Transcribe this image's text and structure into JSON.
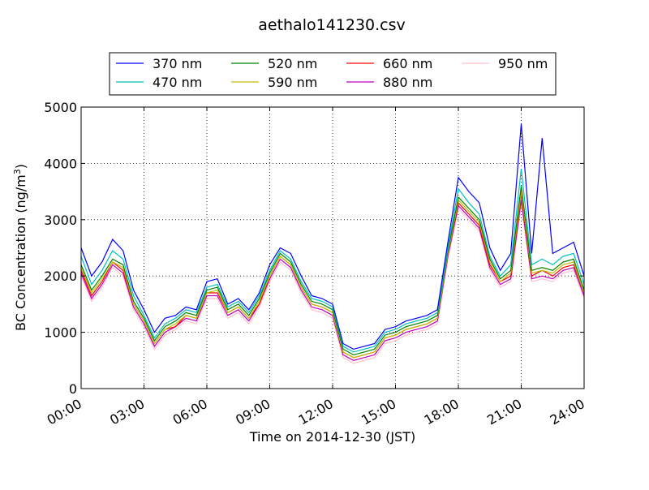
{
  "chart_data": {
    "type": "line",
    "title": "aethalo141230.csv",
    "xlabel": "Time on 2014-12-30 (JST)",
    "ylabel": "BC Concentration (ng/m",
    "ylabel_sup": "3",
    "ylabel_close": ")",
    "xlim": [
      0,
      24
    ],
    "ylim": [
      0,
      5000
    ],
    "grid": true,
    "legend_position": "top-center",
    "x_ticks": [
      0,
      3,
      6,
      9,
      12,
      15,
      18,
      21,
      24
    ],
    "x_tick_labels": [
      "00:00",
      "03:00",
      "06:00",
      "09:00",
      "12:00",
      "15:00",
      "18:00",
      "21:00",
      "24:00"
    ],
    "y_ticks": [
      0,
      1000,
      2000,
      3000,
      4000,
      5000
    ],
    "y_tick_labels": [
      "0",
      "1000",
      "2000",
      "3000",
      "4000",
      "5000"
    ],
    "x": [
      0,
      0.5,
      1,
      1.5,
      2,
      2.5,
      3,
      3.5,
      4,
      4.5,
      5,
      5.5,
      6,
      6.5,
      7,
      7.5,
      8,
      8.5,
      9,
      9.5,
      10,
      10.5,
      11,
      11.5,
      12,
      12.5,
      13,
      13.5,
      14,
      14.5,
      15,
      15.5,
      16,
      16.5,
      17,
      17.5,
      18,
      18.5,
      19,
      19.5,
      20,
      20.5,
      21,
      21.5,
      22,
      22.5,
      23,
      23.5,
      24
    ],
    "series": [
      {
        "name": "370 nm",
        "color": "#0000ff",
        "values": [
          2500,
          2000,
          2250,
          2650,
          2450,
          1750,
          1400,
          1000,
          1250,
          1300,
          1450,
          1400,
          1900,
          1950,
          1500,
          1600,
          1400,
          1700,
          2200,
          2500,
          2400,
          2000,
          1650,
          1600,
          1500,
          800,
          700,
          750,
          800,
          1050,
          1100,
          1200,
          1250,
          1300,
          1400,
          2600,
          3750,
          3500,
          3300,
          2500,
          2100,
          2400,
          4700,
          2400,
          4450,
          2400,
          2500,
          2600,
          2000
        ]
      },
      {
        "name": "470 nm",
        "color": "#00bfbf",
        "values": [
          2350,
          1850,
          2100,
          2450,
          2300,
          1650,
          1300,
          900,
          1150,
          1250,
          1400,
          1350,
          1800,
          1850,
          1450,
          1550,
          1350,
          1650,
          2100,
          2450,
          2300,
          1900,
          1600,
          1550,
          1450,
          750,
          650,
          700,
          750,
          1000,
          1050,
          1150,
          1200,
          1250,
          1350,
          2500,
          3550,
          3300,
          3100,
          2350,
          2000,
          2200,
          3900,
          2200,
          2300,
          2200,
          2350,
          2400,
          1850
        ]
      },
      {
        "name": "520 nm",
        "color": "#008000",
        "values": [
          2200,
          1750,
          2000,
          2300,
          2200,
          1550,
          1250,
          850,
          1100,
          1200,
          1350,
          1300,
          1750,
          1800,
          1400,
          1500,
          1300,
          1600,
          2050,
          2400,
          2250,
          1850,
          1550,
          1500,
          1400,
          700,
          600,
          650,
          700,
          950,
          1000,
          1100,
          1150,
          1200,
          1300,
          2450,
          3400,
          3200,
          3000,
          2300,
          1950,
          2100,
          3600,
          2100,
          2150,
          2100,
          2250,
          2300,
          1750
        ]
      },
      {
        "name": "590 nm",
        "color": "#bfbf00",
        "values": [
          2150,
          1700,
          1950,
          2250,
          2150,
          1500,
          1200,
          800,
          1050,
          1150,
          1300,
          1250,
          1700,
          1750,
          1350,
          1450,
          1250,
          1550,
          2000,
          2350,
          2200,
          1800,
          1500,
          1450,
          1350,
          650,
          550,
          600,
          650,
          900,
          950,
          1050,
          1100,
          1150,
          1250,
          2400,
          3350,
          3150,
          2950,
          2250,
          1900,
          2050,
          3500,
          2050,
          2100,
          2050,
          2200,
          2250,
          1700
        ]
      },
      {
        "name": "660 nm",
        "color": "#ff0000",
        "values": [
          2100,
          1650,
          1900,
          2250,
          2100,
          1500,
          1200,
          800,
          1050,
          1100,
          1300,
          1250,
          1700,
          1700,
          1350,
          1450,
          1250,
          1500,
          2000,
          2350,
          2200,
          1800,
          1500,
          1450,
          1350,
          650,
          550,
          600,
          650,
          900,
          950,
          1050,
          1100,
          1150,
          1250,
          2400,
          3300,
          3100,
          2900,
          2200,
          1900,
          2000,
          3450,
          2000,
          2100,
          2000,
          2150,
          2200,
          1700
        ]
      },
      {
        "name": "880 nm",
        "color": "#bf00bf",
        "values": [
          2050,
          1600,
          1850,
          2200,
          2050,
          1450,
          1150,
          750,
          1000,
          1100,
          1250,
          1200,
          1650,
          1650,
          1300,
          1400,
          1200,
          1500,
          1950,
          2300,
          2150,
          1750,
          1450,
          1400,
          1300,
          600,
          500,
          550,
          600,
          850,
          900,
          1000,
          1050,
          1100,
          1200,
          2350,
          3250,
          3050,
          2850,
          2150,
          1850,
          1950,
          3350,
          1950,
          2000,
          1950,
          2100,
          2150,
          1650
        ]
      },
      {
        "name": "950 nm",
        "color": "#ffc0cb",
        "values": [
          2000,
          1550,
          1800,
          2150,
          2000,
          1400,
          1100,
          700,
          950,
          1050,
          1200,
          1150,
          1600,
          1600,
          1250,
          1350,
          1150,
          1450,
          1900,
          2250,
          2100,
          1700,
          1400,
          1350,
          1250,
          550,
          450,
          500,
          550,
          800,
          850,
          950,
          1000,
          1050,
          1150,
          2300,
          3200,
          3000,
          2800,
          2100,
          1800,
          1900,
          3300,
          1900,
          1950,
          1900,
          2050,
          2100,
          1600
        ]
      }
    ]
  }
}
